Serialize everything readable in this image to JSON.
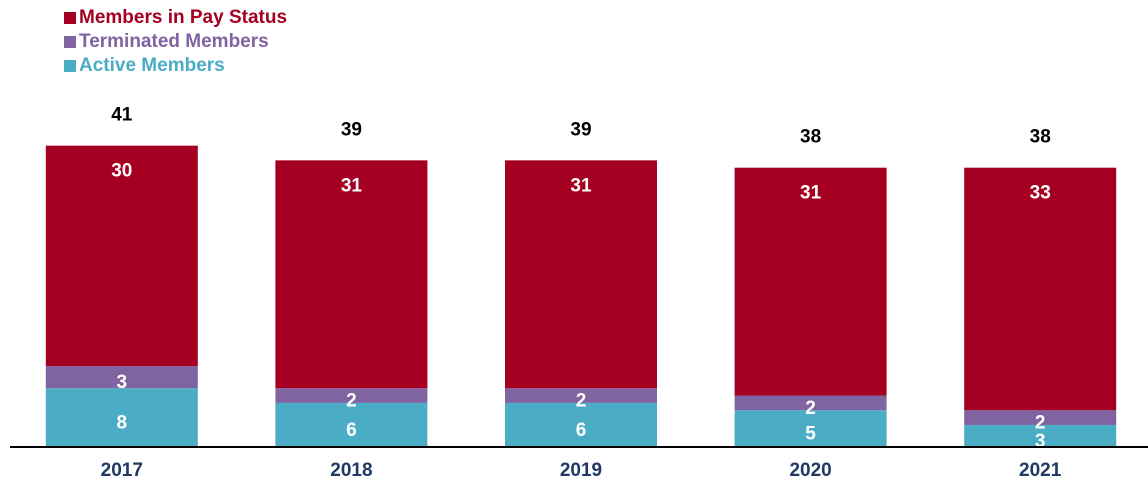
{
  "chart_data": {
    "type": "stacked_bar",
    "categories": [
      "2017",
      "2018",
      "2019",
      "2020",
      "2021"
    ],
    "series": [
      {
        "name": "Active Members",
        "color": "#4bacc6",
        "values": [
          8,
          6,
          6,
          5,
          3
        ]
      },
      {
        "name": "Terminated Members",
        "color": "#8064a2",
        "values": [
          3,
          2,
          2,
          2,
          2
        ]
      },
      {
        "name": "Members in Pay Status",
        "color": "#a50021",
        "values": [
          30,
          31,
          31,
          31,
          33
        ]
      }
    ],
    "totals": [
      41,
      39,
      39,
      38,
      38
    ],
    "ylim": [
      0,
      60
    ]
  }
}
